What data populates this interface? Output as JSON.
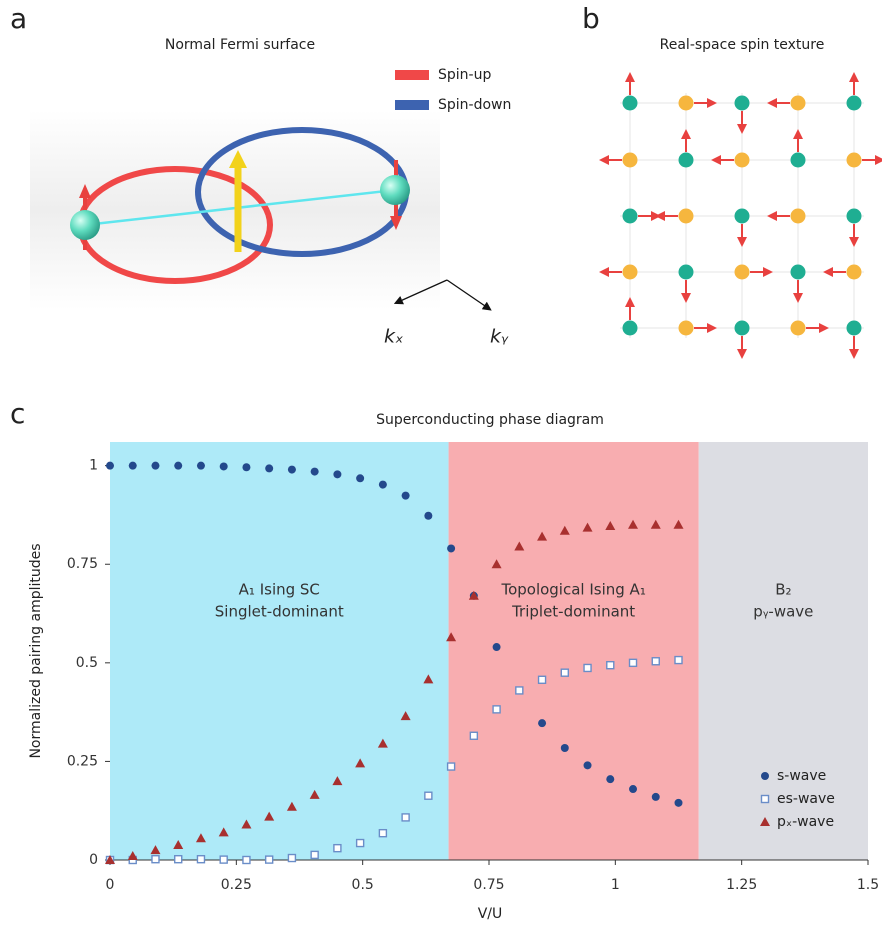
{
  "figure": {
    "panel_labels": [
      "a",
      "b",
      "c"
    ]
  },
  "panel_a": {
    "title": "Normal Fermi surface",
    "legend": [
      {
        "name": "Spin-up",
        "color": "#f04848"
      },
      {
        "name": "Spin-down",
        "color": "#3d63b0"
      }
    ],
    "axis_labels": [
      "kₓ",
      "kᵧ"
    ]
  },
  "panel_b": {
    "title": "Real-space spin texture"
  },
  "chart_data": {
    "type": "scatter",
    "title": "Superconducting phase diagram",
    "x_label": "V/U",
    "y_label": "Normalized pairing amplitudes",
    "x": [
      0,
      0.045,
      0.09,
      0.135,
      0.18,
      0.225,
      0.27,
      0.315,
      0.36,
      0.405,
      0.45,
      0.495,
      0.54,
      0.585,
      0.63,
      0.675,
      0.72,
      0.765,
      0.81,
      0.855,
      0.9,
      0.945,
      0.99,
      1.035,
      1.08,
      1.125
    ],
    "series": [
      {
        "name": "s-wave",
        "color": "#24498c",
        "marker": "circle",
        "values": [
          1,
          1,
          1,
          1,
          1,
          0.998,
          0.996,
          0.993,
          0.99,
          0.985,
          0.978,
          0.968,
          0.952,
          0.924,
          0.873,
          0.79,
          0.67,
          0.54,
          null,
          0.347,
          0.284,
          0.24,
          0.205,
          0.18,
          0.16,
          0.145
        ]
      },
      {
        "name": "es-wave",
        "color": "#6a8dc8",
        "marker": "square",
        "values": [
          0,
          0,
          0.002,
          0.002,
          0.002,
          0.001,
          0,
          0.001,
          0.005,
          0.013,
          0.03,
          0.043,
          0.068,
          0.108,
          0.163,
          0.237,
          0.315,
          0.382,
          0.43,
          0.457,
          0.475,
          0.487,
          0.494,
          0.5,
          0.504,
          0.507
        ]
      },
      {
        "name": "pₓ-wave",
        "color": "#a8302f",
        "marker": "triangle",
        "values": [
          0,
          0.01,
          0.025,
          0.038,
          0.055,
          0.07,
          0.09,
          0.11,
          0.135,
          0.165,
          0.2,
          0.245,
          0.295,
          0.365,
          0.458,
          0.565,
          0.67,
          0.75,
          0.795,
          0.82,
          0.835,
          0.843,
          0.847,
          0.85,
          0.85,
          0.85
        ]
      }
    ],
    "xlim": [
      0,
      1.5
    ],
    "ylim": [
      0,
      1.06
    ],
    "xticks": [
      0,
      0.25,
      0.5,
      0.75,
      1,
      1.25,
      1.5
    ],
    "yticks": [
      0,
      0.25,
      0.5,
      0.75,
      1
    ],
    "legend": "lower right",
    "regions": [
      {
        "xrange": [
          0,
          0.67
        ],
        "color": "#aeeaf8",
        "labels": [
          "A₁ Ising SC",
          "Singlet-dominant"
        ]
      },
      {
        "xrange": [
          0.67,
          1.165
        ],
        "color": "#f8adb0",
        "labels": [
          "Topological Ising A₁",
          "Triplet-dominant"
        ]
      },
      {
        "xrange": [
          1.165,
          1.5
        ],
        "color": "#dcdde3",
        "labels": [
          "B₂",
          "pᵧ-wave"
        ]
      }
    ]
  }
}
